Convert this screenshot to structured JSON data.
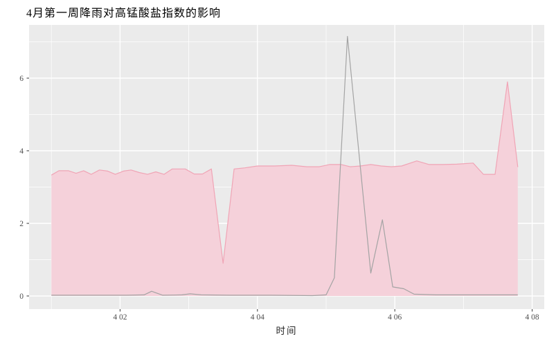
{
  "title": "4月第一周降雨对高锰酸盐指数的影响",
  "chart_data": {
    "type": "area",
    "title": "4月第一周降雨对高锰酸盐指数的影响",
    "xlabel": "时间",
    "ylabel": "",
    "x_axis": {
      "unit": "days since 4/01 00:00",
      "range": [
        -0.325,
        7.2
      ],
      "ticks_major": [
        {
          "d": 1,
          "label": "4 02"
        },
        {
          "d": 3,
          "label": "4 04"
        },
        {
          "d": 5,
          "label": "4 06"
        },
        {
          "d": 7,
          "label": "4 08"
        }
      ],
      "ticks_minor": [
        0,
        2,
        4,
        6
      ]
    },
    "y_axis": {
      "range": [
        -0.36,
        7.47
      ],
      "ticks_major": [
        {
          "v": 0,
          "label": "0"
        },
        {
          "v": 2,
          "label": "2"
        },
        {
          "v": 4,
          "label": "4"
        },
        {
          "v": 6,
          "label": "6"
        }
      ],
      "ticks_minor": [
        1,
        3,
        5,
        7
      ]
    },
    "grid": true,
    "legend": "none",
    "series": [
      {
        "name": "pink_area",
        "type": "area",
        "stroke": "#f0a4b5",
        "fill": "#f5d1da",
        "points": [
          [
            0.0,
            3.33
          ],
          [
            0.11,
            3.45
          ],
          [
            0.25,
            3.45
          ],
          [
            0.36,
            3.38
          ],
          [
            0.47,
            3.45
          ],
          [
            0.58,
            3.35
          ],
          [
            0.7,
            3.47
          ],
          [
            0.82,
            3.44
          ],
          [
            0.93,
            3.35
          ],
          [
            1.05,
            3.44
          ],
          [
            1.16,
            3.47
          ],
          [
            1.28,
            3.4
          ],
          [
            1.4,
            3.35
          ],
          [
            1.52,
            3.42
          ],
          [
            1.64,
            3.35
          ],
          [
            1.76,
            3.5
          ],
          [
            1.95,
            3.5
          ],
          [
            2.08,
            3.36
          ],
          [
            2.2,
            3.36
          ],
          [
            2.33,
            3.5
          ],
          [
            2.5,
            0.9
          ],
          [
            2.66,
            3.5
          ],
          [
            2.82,
            3.53
          ],
          [
            3.0,
            3.58
          ],
          [
            3.25,
            3.58
          ],
          [
            3.5,
            3.6
          ],
          [
            3.72,
            3.56
          ],
          [
            3.9,
            3.56
          ],
          [
            4.05,
            3.62
          ],
          [
            4.22,
            3.62
          ],
          [
            4.35,
            3.56
          ],
          [
            4.5,
            3.58
          ],
          [
            4.65,
            3.62
          ],
          [
            4.8,
            3.58
          ],
          [
            4.95,
            3.56
          ],
          [
            5.1,
            3.58
          ],
          [
            5.32,
            3.72
          ],
          [
            5.5,
            3.62
          ],
          [
            5.7,
            3.62
          ],
          [
            5.9,
            3.63
          ],
          [
            6.14,
            3.66
          ],
          [
            6.29,
            3.35
          ],
          [
            6.46,
            3.35
          ],
          [
            6.64,
            5.9
          ],
          [
            6.79,
            3.55
          ]
        ]
      },
      {
        "name": "gray_line",
        "type": "line",
        "stroke": "#a3a3a3",
        "points": [
          [
            0.0,
            0.02
          ],
          [
            0.6,
            0.02
          ],
          [
            1.1,
            0.02
          ],
          [
            1.35,
            0.03
          ],
          [
            1.46,
            0.13
          ],
          [
            1.62,
            0.02
          ],
          [
            1.9,
            0.03
          ],
          [
            2.02,
            0.06
          ],
          [
            2.18,
            0.03
          ],
          [
            2.6,
            0.02
          ],
          [
            3.2,
            0.02
          ],
          [
            3.8,
            0.01
          ],
          [
            4.0,
            0.03
          ],
          [
            4.12,
            0.5
          ],
          [
            4.31,
            7.15
          ],
          [
            4.65,
            0.63
          ],
          [
            4.82,
            2.1
          ],
          [
            4.97,
            0.25
          ],
          [
            5.13,
            0.2
          ],
          [
            5.28,
            0.05
          ],
          [
            5.6,
            0.03
          ],
          [
            6.0,
            0.03
          ],
          [
            6.4,
            0.03
          ],
          [
            6.79,
            0.03
          ]
        ]
      }
    ]
  },
  "colors": {
    "page_bg": "#ffffff",
    "panel_bg": "#ebebeb",
    "grid": "#ffffff",
    "tick": "#333333",
    "tick_label": "#4d4d4d",
    "axis_title": "#262626",
    "title": "#000000"
  }
}
